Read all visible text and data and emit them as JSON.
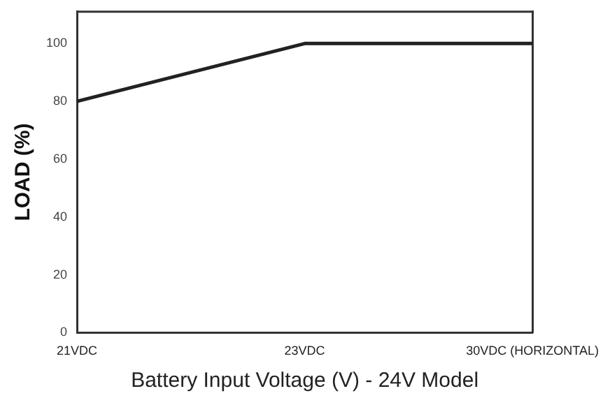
{
  "chart_data": {
    "type": "line",
    "xlabel": "Battery Input Voltage (V) - 24V Model",
    "ylabel": "LOAD (%)",
    "categories": [
      "21VDC",
      "23VDC",
      "30VDC (HORIZONTAL)"
    ],
    "series": [
      {
        "color": "#222222",
        "values": [
          80,
          100,
          100
        ]
      }
    ],
    "ylim": [
      0,
      111
    ],
    "yticks": [
      0,
      20,
      40,
      60,
      80,
      100
    ],
    "grid": false,
    "legend": false,
    "marker": "none",
    "line_style": "solid"
  }
}
